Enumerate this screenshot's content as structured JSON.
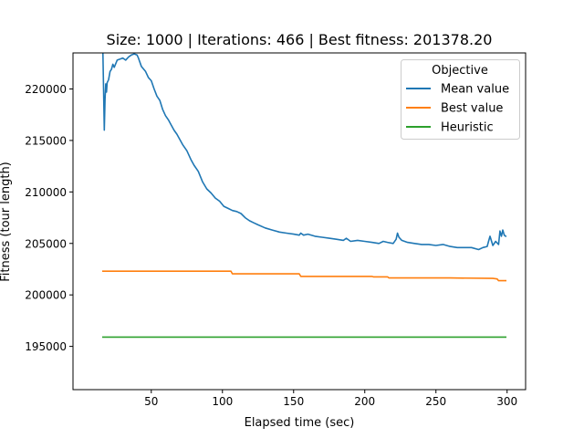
{
  "chart_data": {
    "type": "line",
    "title": "Size: 1000 | Iterations: 466 | Best fitness: 201378.20",
    "xlabel": "Elapsed time (sec)",
    "ylabel": "Fitness (tour length)",
    "xlim": [
      -5,
      313
    ],
    "ylim": [
      190800,
      223500
    ],
    "xticks": [
      50,
      100,
      150,
      200,
      250,
      300
    ],
    "yticks": [
      195000,
      200000,
      205000,
      210000,
      215000,
      220000
    ],
    "legend": {
      "title": "Objective",
      "placement": "top-right"
    },
    "grid": false,
    "series": [
      {
        "name": "Mean value",
        "color": "#1f77b4",
        "x": [
          16.0,
          16.5,
          17.0,
          17.5,
          18.0,
          18.5,
          19.0,
          20,
          21,
          22,
          23,
          24,
          26,
          28,
          30,
          32,
          34,
          36,
          38,
          40,
          41,
          43,
          46,
          48,
          50,
          52,
          54,
          56,
          58,
          60,
          62,
          64,
          66,
          68,
          70,
          72,
          75,
          78,
          80,
          83,
          86,
          89,
          92,
          95,
          98,
          101,
          104,
          107,
          110,
          113,
          116,
          119,
          122,
          125,
          130,
          135,
          140,
          145,
          150,
          154,
          155,
          157,
          160,
          165,
          170,
          175,
          180,
          185,
          187,
          190,
          195,
          200,
          205,
          210,
          213,
          216,
          220,
          222,
          223,
          224,
          226,
          228,
          230,
          235,
          240,
          245,
          250,
          255,
          260,
          265,
          270,
          275,
          280,
          283,
          286,
          287,
          288,
          290,
          292,
          294,
          295,
          296,
          297,
          298,
          299
        ],
        "y": [
          223400,
          220000,
          216000,
          219000,
          220500,
          219700,
          220600,
          220900,
          221700,
          221900,
          222400,
          222100,
          222800,
          222900,
          223000,
          222800,
          223100,
          223300,
          223400,
          223300,
          223000,
          222200,
          221700,
          221100,
          220800,
          220000,
          219300,
          218900,
          218000,
          217400,
          217000,
          216500,
          216000,
          215600,
          215100,
          214600,
          214000,
          213100,
          212600,
          212000,
          211000,
          210300,
          209900,
          209400,
          209100,
          208600,
          208400,
          208200,
          208100,
          207900,
          207500,
          207200,
          207000,
          206800,
          206500,
          206300,
          206100,
          206000,
          205900,
          205800,
          206000,
          205800,
          205900,
          205700,
          205600,
          205500,
          205400,
          205300,
          205500,
          205200,
          205300,
          205200,
          205100,
          205000,
          205200,
          205100,
          205000,
          205400,
          206000,
          205600,
          205300,
          205200,
          205100,
          205000,
          204900,
          204900,
          204800,
          204900,
          204700,
          204600,
          204600,
          204600,
          204400,
          204600,
          204700,
          205200,
          205700,
          204800,
          205200,
          204900,
          206200,
          205700,
          206300,
          205800,
          205700
        ]
      },
      {
        "name": "Best value",
        "color": "#ff7f0e",
        "x": [
          16,
          106,
          107,
          154,
          155,
          205,
          206,
          216,
          217,
          260,
          290,
          293,
          294,
          299
        ],
        "y": [
          202300,
          202300,
          202050,
          202050,
          201800,
          201800,
          201750,
          201750,
          201650,
          201650,
          201600,
          201550,
          201380,
          201380
        ]
      },
      {
        "name": "Heuristic",
        "color": "#2ca02c",
        "x": [
          16,
          299
        ],
        "y": [
          195900,
          195900
        ]
      }
    ]
  }
}
